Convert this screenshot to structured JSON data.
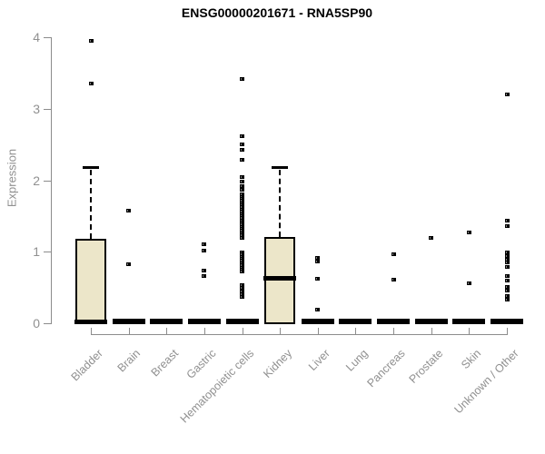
{
  "chart_data": {
    "type": "boxplot",
    "title": "ENSG00000201671 - RNA5SP90",
    "xlabel": "",
    "ylabel": "Expression",
    "ylim": [
      0,
      4
    ],
    "yticks": [
      "0",
      "1",
      "2",
      "3",
      "4"
    ],
    "grid": false,
    "legend": "none",
    "box_fill_color": "#ece6c9",
    "box_border_color": "#000000",
    "axis_color": "#8c8c8c",
    "label_color": "#909090",
    "categories": [
      "Bladder",
      "Brain",
      "Breast",
      "Gastric",
      "Hematopoietic cells",
      "Kidney",
      "Liver",
      "Lung",
      "Pancreas",
      "Prostate",
      "Skin",
      "Unknown / Other"
    ],
    "series": [
      {
        "label": "Bladder",
        "q1": 0,
        "median": 0,
        "q3": 1.18,
        "whisker_low": 0,
        "whisker_high": 2.18,
        "outliers": [
          3.95,
          3.35
        ]
      },
      {
        "label": "Brain",
        "q1": 0,
        "median": 0,
        "q3": 0,
        "whisker_low": 0,
        "whisker_high": 0,
        "outliers": [
          1.58,
          0.82
        ]
      },
      {
        "label": "Breast",
        "q1": 0,
        "median": 0,
        "q3": 0,
        "whisker_low": 0,
        "whisker_high": 0,
        "outliers": []
      },
      {
        "label": "Gastric",
        "q1": 0,
        "median": 0,
        "q3": 0,
        "whisker_low": 0,
        "whisker_high": 0,
        "outliers": [
          1.1,
          1.02,
          0.74,
          0.66
        ]
      },
      {
        "label": "Hematopoietic cells",
        "q1": 0,
        "median": 0,
        "q3": 0,
        "whisker_low": 0,
        "whisker_high": 0,
        "outliers": [
          3.42,
          2.62,
          2.5,
          2.43,
          2.28,
          2.05,
          1.98,
          1.92,
          1.87,
          1.8,
          1.77,
          1.74,
          1.71,
          1.68,
          1.65,
          1.62,
          1.59,
          1.56,
          1.53,
          1.5,
          1.47,
          1.44,
          1.41,
          1.38,
          1.35,
          1.32,
          1.29,
          1.26,
          1.23,
          1.2,
          0.99,
          0.96,
          0.93,
          0.9,
          0.87,
          0.84,
          0.81,
          0.78,
          0.75,
          0.72,
          0.53,
          0.49,
          0.45,
          0.41,
          0.37
        ]
      },
      {
        "label": "Kidney",
        "q1": 0,
        "median": 0.63,
        "q3": 1.21,
        "whisker_low": 0,
        "whisker_high": 2.18,
        "outliers": []
      },
      {
        "label": "Liver",
        "q1": 0,
        "median": 0,
        "q3": 0,
        "whisker_low": 0,
        "whisker_high": 0,
        "outliers": [
          0.92,
          0.86,
          0.62,
          0.19
        ]
      },
      {
        "label": "Lung",
        "q1": 0,
        "median": 0,
        "q3": 0,
        "whisker_low": 0,
        "whisker_high": 0,
        "outliers": []
      },
      {
        "label": "Pancreas",
        "q1": 0,
        "median": 0,
        "q3": 0,
        "whisker_low": 0,
        "whisker_high": 0,
        "outliers": [
          0.97,
          0.61
        ]
      },
      {
        "label": "Prostate",
        "q1": 0,
        "median": 0,
        "q3": 0,
        "whisker_low": 0,
        "whisker_high": 0,
        "outliers": [
          1.2
        ]
      },
      {
        "label": "Skin",
        "q1": 0,
        "median": 0,
        "q3": 0,
        "whisker_low": 0,
        "whisker_high": 0,
        "outliers": [
          1.27,
          0.56
        ]
      },
      {
        "label": "Unknown / Other",
        "q1": 0,
        "median": 0,
        "q3": 0,
        "whisker_low": 0,
        "whisker_high": 0,
        "outliers": [
          3.2,
          1.43,
          1.36,
          0.99,
          0.94,
          0.89,
          0.85,
          0.79,
          0.66,
          0.6,
          0.51,
          0.46,
          0.38,
          0.33
        ]
      }
    ]
  }
}
